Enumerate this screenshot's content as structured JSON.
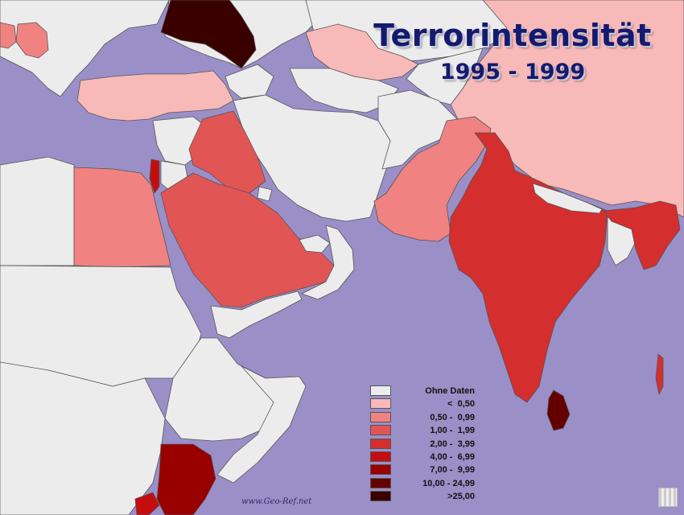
{
  "map": {
    "title": "Terrorintensität",
    "subtitle": "1995 - 1999",
    "watermark": "www.Geo-Ref.net",
    "colors": {
      "sea": "#9b8fc8",
      "no_data": "#ececec",
      "c1": "#f8b9b9",
      "c2": "#f08282",
      "c3": "#e25555",
      "c4": "#d42e2e",
      "c5": "#c40e0e",
      "c6": "#990000",
      "c7": "#640000",
      "c8": "#3a0000"
    },
    "legend": [
      {
        "label": "Ohne Daten",
        "color": "#ececec"
      },
      {
        "label": "<  0,50",
        "color": "#f8b9b9"
      },
      {
        "label": "0,50 -  0,99",
        "color": "#f08282"
      },
      {
        "label": "1,00 -  1,99",
        "color": "#e25555"
      },
      {
        "label": "2,00 -  3,99",
        "color": "#d42e2e"
      },
      {
        "label": "4,00 -  6,99",
        "color": "#c40e0e"
      },
      {
        "label": "7,00 -  9,99",
        "color": "#990000"
      },
      {
        "label": "10,00 - 24,99",
        "color": "#640000"
      },
      {
        "label": ">25,00",
        "color": "#3a0000"
      }
    ]
  }
}
